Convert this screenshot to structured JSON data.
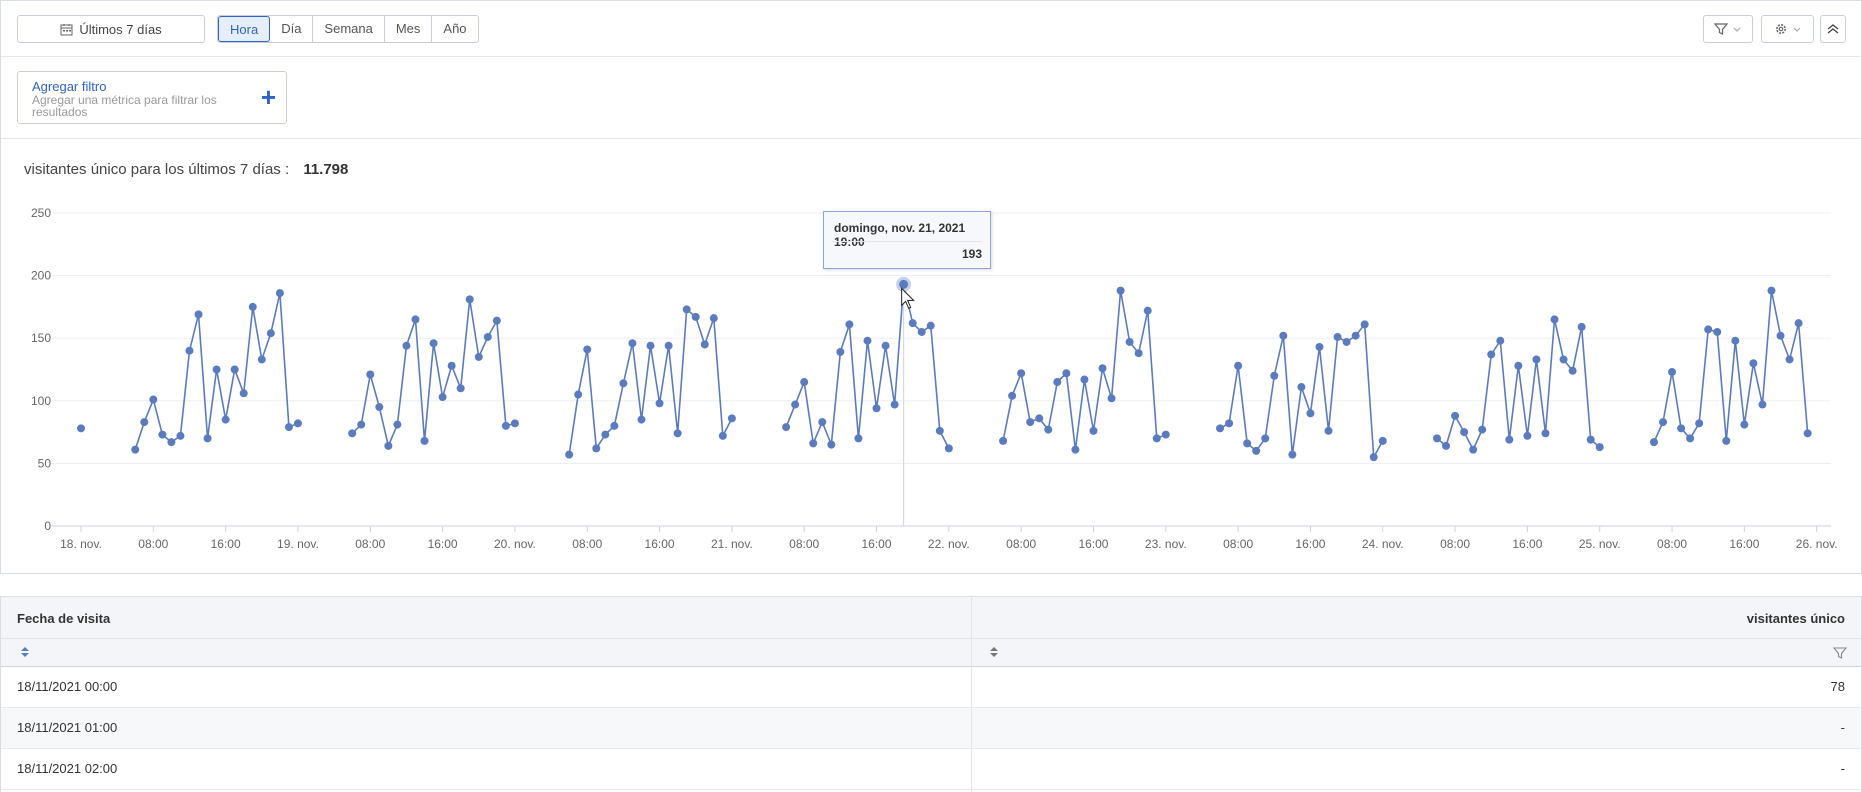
{
  "toolbar": {
    "date_range": "Últimos 7 días",
    "periods": [
      "Hora",
      "Día",
      "Semana",
      "Mes",
      "Año"
    ],
    "active_period": "Hora"
  },
  "filters": {
    "add_title": "Agregar filtro",
    "add_desc": "Agregar una métrica para filtrar los resultados"
  },
  "summary": {
    "label": "visitantes único para los últimos 7 días :",
    "total": "11.798"
  },
  "tooltip": {
    "date": "domingo, nov. 21, 2021 19:00",
    "value": "193"
  },
  "chart_data": {
    "type": "line",
    "title": "",
    "xlabel": "",
    "ylabel": "",
    "ylim": [
      0,
      250
    ],
    "yticks": [
      0,
      50,
      100,
      150,
      200,
      250
    ],
    "grid": true,
    "xticks": [
      {
        "h": 0,
        "label": "18. nov."
      },
      {
        "h": 8,
        "label": "08:00"
      },
      {
        "h": 16,
        "label": "16:00"
      },
      {
        "h": 24,
        "label": "19. nov."
      },
      {
        "h": 32,
        "label": "08:00"
      },
      {
        "h": 40,
        "label": "16:00"
      },
      {
        "h": 48,
        "label": "20. nov."
      },
      {
        "h": 56,
        "label": "08:00"
      },
      {
        "h": 64,
        "label": "16:00"
      },
      {
        "h": 72,
        "label": "21. nov."
      },
      {
        "h": 80,
        "label": "08:00"
      },
      {
        "h": 88,
        "label": "16:00"
      },
      {
        "h": 96,
        "label": "22. nov."
      },
      {
        "h": 104,
        "label": "08:00"
      },
      {
        "h": 112,
        "label": "16:00"
      },
      {
        "h": 120,
        "label": "23. nov."
      },
      {
        "h": 128,
        "label": "08:00"
      },
      {
        "h": 136,
        "label": "16:00"
      },
      {
        "h": 144,
        "label": "24. nov."
      },
      {
        "h": 152,
        "label": "08:00"
      },
      {
        "h": 160,
        "label": "16:00"
      },
      {
        "h": 168,
        "label": "25. nov."
      },
      {
        "h": 176,
        "label": "08:00"
      },
      {
        "h": 184,
        "label": "16:00"
      },
      {
        "h": 192,
        "label": "26. nov."
      }
    ],
    "x_start": "18/11/2021 00:00",
    "x_step": "1 hora",
    "series": [
      {
        "name": "visitantes único",
        "color": "#5b7bbf",
        "values": [
          78,
          null,
          null,
          null,
          null,
          null,
          61,
          83,
          101,
          73,
          67,
          72,
          140,
          169,
          70,
          125,
          85,
          125,
          106,
          175,
          133,
          154,
          186,
          79,
          82,
          null,
          null,
          null,
          null,
          null,
          74,
          81,
          121,
          95,
          64,
          81,
          144,
          165,
          68,
          146,
          103,
          128,
          110,
          181,
          135,
          151,
          164,
          80,
          82,
          null,
          null,
          null,
          null,
          null,
          57,
          105,
          141,
          62,
          73,
          80,
          114,
          146,
          85,
          144,
          98,
          144,
          74,
          173,
          167,
          145,
          166,
          72,
          86,
          null,
          null,
          null,
          null,
          null,
          79,
          97,
          115,
          66,
          83,
          65,
          139,
          161,
          70,
          148,
          94,
          144,
          97,
          193,
          162,
          155,
          160,
          76,
          62,
          null,
          null,
          null,
          null,
          null,
          68,
          104,
          122,
          83,
          86,
          77,
          115,
          122,
          61,
          117,
          76,
          126,
          102,
          188,
          147,
          138,
          172,
          70,
          73,
          null,
          null,
          null,
          null,
          null,
          78,
          82,
          128,
          66,
          60,
          70,
          120,
          152,
          57,
          111,
          90,
          143,
          76,
          151,
          147,
          152,
          161,
          55,
          68,
          null,
          null,
          null,
          null,
          null,
          70,
          64,
          88,
          75,
          61,
          77,
          137,
          148,
          69,
          128,
          72,
          133,
          74,
          165,
          133,
          124,
          159,
          69,
          63,
          null,
          null,
          null,
          null,
          null,
          67,
          83,
          123,
          78,
          70,
          82,
          157,
          155,
          68,
          148,
          81,
          130,
          97,
          188,
          152,
          133,
          162,
          74
        ]
      }
    ],
    "highlight": {
      "index": 91,
      "label": "domingo, nov. 21, 2021 19:00",
      "value": 193
    }
  },
  "table": {
    "col1": "Fecha de visita",
    "col2": "visitantes único",
    "rows": [
      {
        "date": "18/11/2021 00:00",
        "value": "78"
      },
      {
        "date": "18/11/2021 01:00",
        "value": "-"
      },
      {
        "date": "18/11/2021 02:00",
        "value": "-"
      }
    ]
  }
}
